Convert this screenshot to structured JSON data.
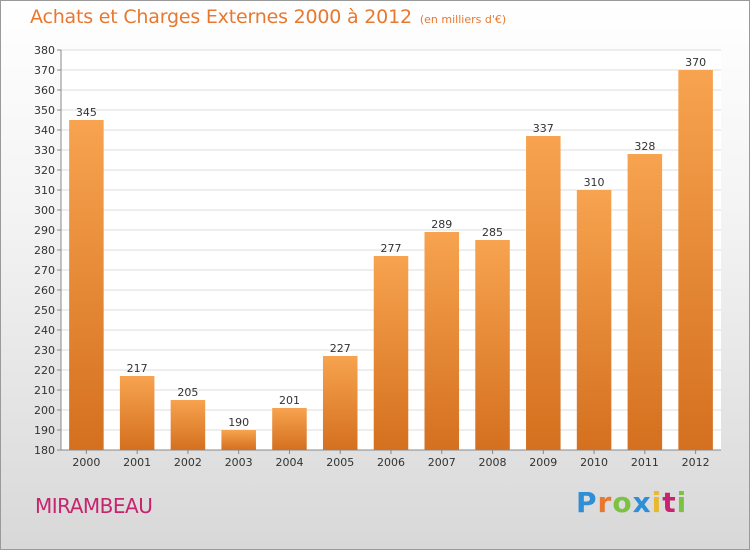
{
  "page": {
    "title": "Achats et Charges Externes 2000 à 2012",
    "title_unit": "(en milliers d'€)",
    "commune": "MIRAMBEAU",
    "logo": {
      "letters": [
        {
          "char": "P",
          "color": "#2f8fd6"
        },
        {
          "char": "r",
          "color": "#e8782f"
        },
        {
          "char": "o",
          "color": "#7cc242"
        },
        {
          "char": "x",
          "color": "#2f8fd6"
        },
        {
          "char": "i",
          "color": "#e8b82f"
        },
        {
          "char": "t",
          "color": "#c8236f"
        },
        {
          "char": "i",
          "color": "#7cc242"
        }
      ]
    }
  },
  "chart_data": {
    "type": "bar",
    "categories": [
      "2000",
      "2001",
      "2002",
      "2003",
      "2004",
      "2005",
      "2006",
      "2007",
      "2008",
      "2009",
      "2010",
      "2011",
      "2012"
    ],
    "values": [
      345,
      217,
      205,
      190,
      201,
      227,
      277,
      289,
      285,
      337,
      310,
      328,
      370
    ],
    "title": "Achats et Charges Externes 2000 à 2012",
    "xlabel": "",
    "ylabel": "",
    "ylim": [
      180,
      380
    ],
    "yticks": [
      180,
      190,
      200,
      210,
      220,
      230,
      240,
      250,
      260,
      270,
      280,
      290,
      300,
      310,
      320,
      330,
      340,
      350,
      360,
      370,
      380
    ],
    "grid": true,
    "bar_color_top": "#f7a34f",
    "bar_color_bottom": "#d4701f"
  }
}
